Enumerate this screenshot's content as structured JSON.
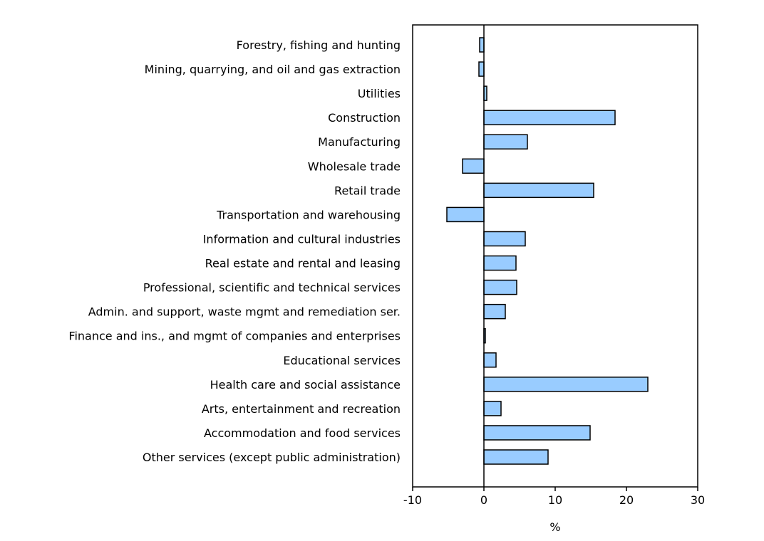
{
  "chart_data": {
    "type": "bar",
    "orientation": "horizontal",
    "title": "",
    "xlabel": "%",
    "ylabel": "",
    "xlim": [
      -10,
      30
    ],
    "xticks": [
      -10,
      0,
      10,
      20,
      30
    ],
    "grid": false,
    "bar_color": "#99ccff",
    "categories": [
      "Forestry, fishing and hunting",
      "Mining, quarrying, and oil and gas extraction",
      "Utilities",
      "Construction",
      "Manufacturing",
      "Wholesale trade",
      "Retail trade",
      "Transportation and warehousing",
      "Information and cultural industries",
      "Real estate and rental and leasing",
      "Professional, scientific and technical services",
      "Admin. and support, waste mgmt and remediation ser.",
      "Finance and ins., and mgmt of companies and enterprises",
      "Educational services",
      "Health care and social assistance",
      "Arts, entertainment and recreation",
      "Accommodation and food services",
      "Other services (except public administration)"
    ],
    "values": [
      -0.6,
      -0.7,
      0.4,
      18.4,
      6.1,
      -3.0,
      15.4,
      -5.2,
      5.8,
      4.5,
      4.6,
      3.0,
      0.2,
      1.7,
      23.0,
      2.4,
      14.9,
      9.0
    ]
  }
}
